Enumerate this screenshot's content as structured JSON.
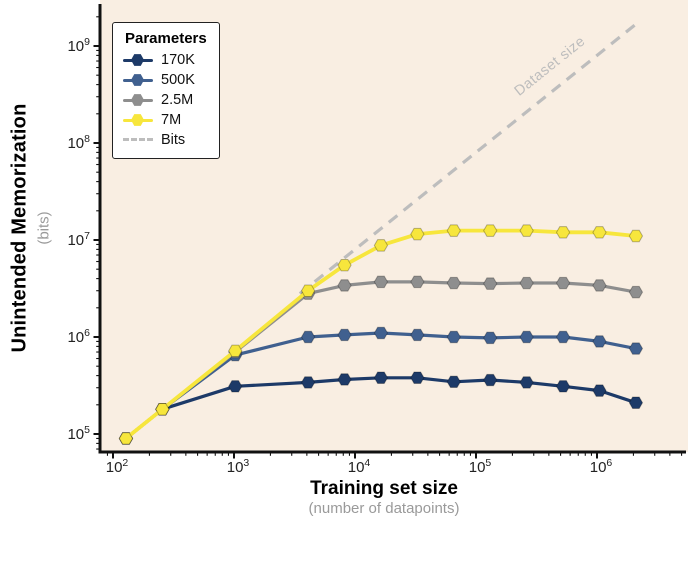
{
  "figure": {
    "background": "#ffffff",
    "plot_background": "#f9eee2",
    "axis_color": "#111111",
    "tick_label_color": "#222222",
    "sub_label_color": "#9a9a9a"
  },
  "chart_data": {
    "type": "line",
    "title": "",
    "xlabel": "Training set size",
    "xlabel_sub": "(number of datapoints)",
    "ylabel": "Unintended Memorization",
    "ylabel_sub": "(bits)",
    "x_scale": "log",
    "y_scale": "log",
    "x_domain": [
      80,
      5000000
    ],
    "y_domain": [
      65000,
      2500000000
    ],
    "x_tick_exponents": [
      2,
      3,
      4,
      5,
      6
    ],
    "y_tick_exponents": [
      5,
      6,
      7,
      8,
      9
    ],
    "grid": false,
    "legend_title": "Parameters",
    "legend_position": "top-left",
    "marker": "hexagon",
    "x": [
      128,
      256,
      1024,
      4096,
      8192,
      16384,
      32768,
      65536,
      131072,
      262144,
      524288,
      1048576,
      2097152
    ],
    "series": [
      {
        "name": "170K",
        "color": "#1d3a68",
        "line_width": 3.2,
        "values": [
          90000,
          180000,
          310000,
          340000,
          365000,
          380000,
          380000,
          345000,
          360000,
          340000,
          310000,
          280000,
          210000
        ]
      },
      {
        "name": "500K",
        "color": "#40608f",
        "line_width": 3.2,
        "values": [
          90000,
          180000,
          650000,
          1000000,
          1050000,
          1100000,
          1050000,
          1000000,
          980000,
          1000000,
          1000000,
          900000,
          760000
        ]
      },
      {
        "name": "2.5M",
        "color": "#8e8e8e",
        "line_width": 3.2,
        "values": [
          90000,
          180000,
          700000,
          2800000,
          3400000,
          3700000,
          3700000,
          3600000,
          3550000,
          3600000,
          3600000,
          3400000,
          2900000
        ]
      },
      {
        "name": "7M",
        "color": "#f7e63c",
        "line_width": 3.8,
        "values": [
          90000,
          180000,
          720000,
          3000000,
          5500000,
          8800000,
          11500000,
          12500000,
          12500000,
          12500000,
          12000000,
          12000000,
          11000000
        ]
      }
    ],
    "reference_line": {
      "name": "Bits",
      "label": "Dataset size",
      "color": "#bdbdbd",
      "style": "dashed",
      "bits_per_datapoint": 800,
      "x_range": [
        3500,
        2300000
      ]
    }
  }
}
